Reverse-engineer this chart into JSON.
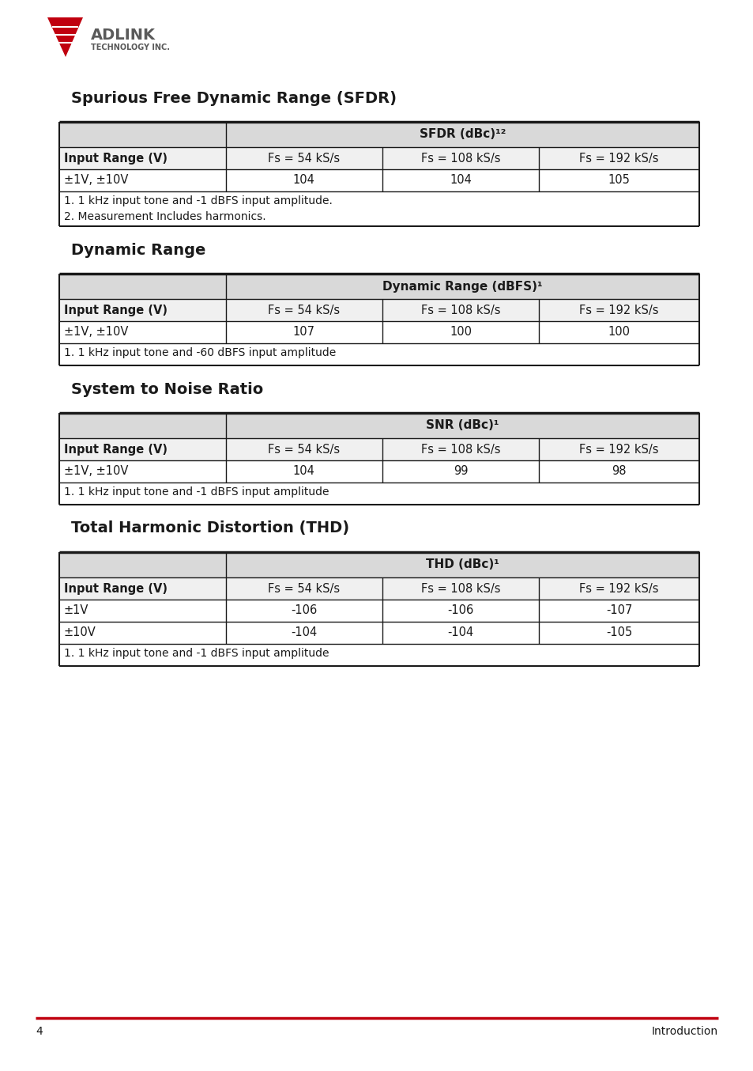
{
  "page_number": "4",
  "page_label": "Introduction",
  "background_color": "#ffffff",
  "red_color": "#c0000e",
  "dark_color": "#1a1a1a",
  "gray_header_color": "#d9d9d9",
  "table_border_color": "#1a1a1a",
  "sections": [
    {
      "title": "Spurious Free Dynamic Range (SFDR)",
      "header_col1": "",
      "header_col2": "SFDR (dBc)¹²",
      "subheader": [
        "Input Range (V)",
        "Fs = 54 kS/s",
        "Fs = 108 kS/s",
        "Fs = 192 kS/s"
      ],
      "rows": [
        [
          "±1V, ±10V",
          "104",
          "104",
          "105"
        ]
      ],
      "footnotes": [
        "1. 1 kHz input tone and -1 dBFS input amplitude.",
        "2. Measurement Includes harmonics."
      ]
    },
    {
      "title": "Dynamic Range",
      "header_col1": "",
      "header_col2": "Dynamic Range (dBFS)¹",
      "subheader": [
        "Input Range (V)",
        "Fs = 54 kS/s",
        "Fs = 108 kS/s",
        "Fs = 192 kS/s"
      ],
      "rows": [
        [
          "±1V, ±10V",
          "107",
          "100",
          "100"
        ]
      ],
      "footnotes": [
        "1. 1 kHz input tone and -60 dBFS input amplitude"
      ]
    },
    {
      "title": "System to Noise Ratio",
      "header_col1": "",
      "header_col2": "SNR (dBc)¹",
      "subheader": [
        "Input Range (V)",
        "Fs = 54 kS/s",
        "Fs = 108 kS/s",
        "Fs = 192 kS/s"
      ],
      "rows": [
        [
          "±1V, ±10V",
          "104",
          "99",
          "98"
        ]
      ],
      "footnotes": [
        "1. 1 kHz input tone and -1 dBFS input amplitude"
      ]
    },
    {
      "title": "Total Harmonic Distortion (THD)",
      "header_col1": "",
      "header_col2": "THD (dBc)¹",
      "subheader": [
        "Input Range (V)",
        "Fs = 54 kS/s",
        "Fs = 108 kS/s",
        "Fs = 192 kS/s"
      ],
      "rows": [
        [
          "±1V",
          "-106",
          "-106",
          "-107"
        ],
        [
          "±10V",
          "-104",
          "-104",
          "-105"
        ]
      ],
      "footnotes": [
        "1. 1 kHz input tone and -1 dBFS input amplitude"
      ]
    }
  ]
}
